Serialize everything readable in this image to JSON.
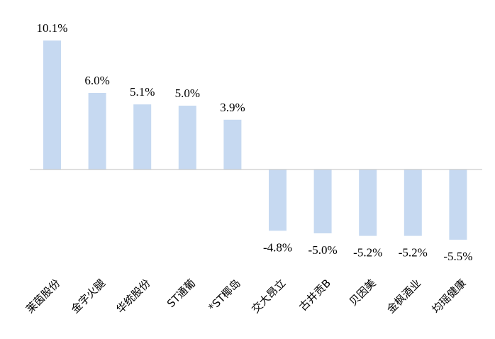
{
  "chart_data": {
    "type": "bar",
    "categories": [
      "莱茵股份",
      "金字火腿",
      "华统股份",
      "ST通葡",
      "*ST椰岛",
      "交大昂立",
      "古井贡B",
      "贝因美",
      "金枫酒业",
      "均瑶健康"
    ],
    "values": [
      10.1,
      6.0,
      5.1,
      5.0,
      3.9,
      -4.8,
      -5.0,
      -5.2,
      -5.2,
      -5.5
    ],
    "data_labels": [
      "10.1%",
      "6.0%",
      "5.1%",
      "5.0%",
      "3.9%",
      "-4.8%",
      "-5.0%",
      "-5.2%",
      "-5.2%",
      "-5.5%"
    ],
    "title": "",
    "xlabel": "",
    "ylabel": "",
    "grid": false,
    "legend": "none",
    "bar_color": "#c6d9f1",
    "axis_color": "#bfbfbf"
  }
}
